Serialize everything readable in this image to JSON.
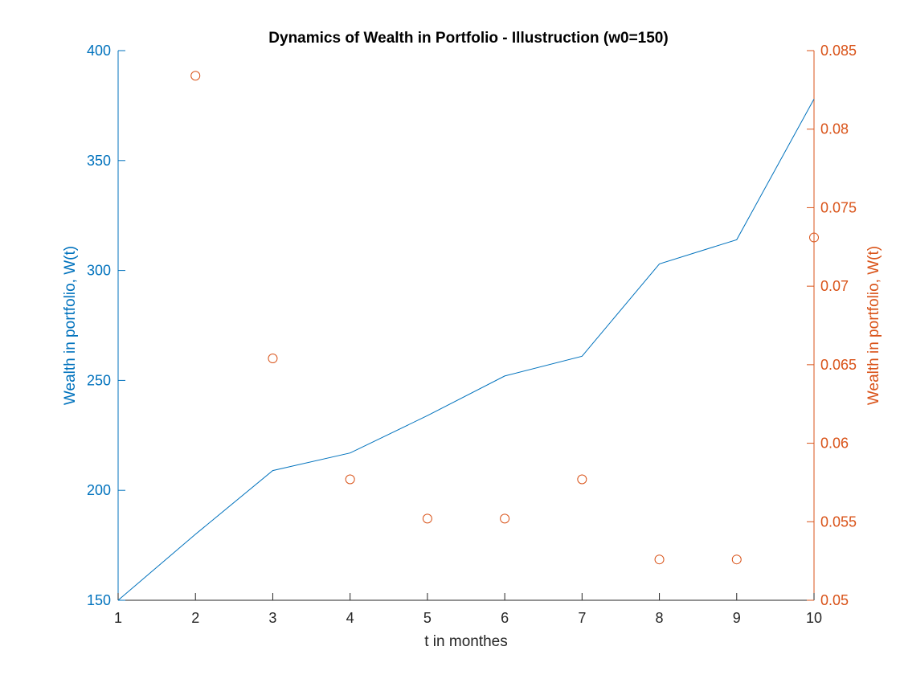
{
  "chart_data": {
    "type": "line",
    "title": "Dynamics of Wealth in Portfolio - Illustruction (w0=150)",
    "xlabel": "t in monthes",
    "ylabel_left": "Wealth in portfolio, W(t)",
    "ylabel_right": "Wealth in portfolio, W(t)",
    "xlim": [
      1,
      10
    ],
    "ylim_left": [
      150,
      400
    ],
    "ylim_right": [
      0.05,
      0.085
    ],
    "x_ticks": [
      1,
      2,
      3,
      4,
      5,
      6,
      7,
      8,
      9,
      10
    ],
    "y_ticks_left": [
      "150",
      "200",
      "250",
      "300",
      "350",
      "400"
    ],
    "y_ticks_right": [
      "0.05",
      "0.055",
      "0.06",
      "0.065",
      "0.07",
      "0.075",
      "0.08",
      "0.085"
    ],
    "grid": false,
    "colors": {
      "left": "#0072BD",
      "right": "#D95319",
      "text": "#262626",
      "axis": "#262626"
    },
    "series": [
      {
        "axis": "left",
        "style": "line",
        "x": [
          1,
          2,
          3,
          4,
          5,
          6,
          7,
          8,
          9,
          10
        ],
        "values": [
          150,
          180,
          209,
          217,
          234,
          252,
          261,
          303,
          314,
          378
        ]
      },
      {
        "axis": "right",
        "style": "circle-marker",
        "x": [
          2,
          3,
          4,
          5,
          6,
          7,
          8,
          9,
          10
        ],
        "values": [
          0.0834,
          0.0654,
          0.0577,
          0.0552,
          0.0552,
          0.0577,
          0.0526,
          0.0526,
          0.0731
        ]
      }
    ]
  }
}
